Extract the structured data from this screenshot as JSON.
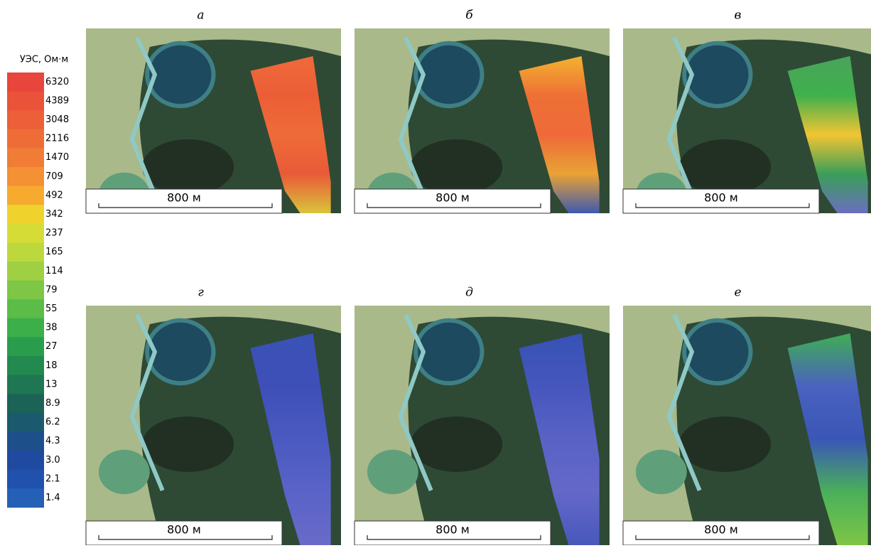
{
  "legend": {
    "title": "УЭС, Ом·м",
    "labels": [
      "6320",
      "4389",
      "3048",
      "2116",
      "1470",
      "709",
      "492",
      "342",
      "237",
      "165",
      "114",
      "79",
      "55",
      "38",
      "27",
      "18",
      "13",
      "8.9",
      "6.2",
      "4.3",
      "3.0",
      "2.1",
      "1.4"
    ],
    "colors": [
      "#e8453c",
      "#ea523a",
      "#ec5f38",
      "#ee6d37",
      "#f07c36",
      "#f39134",
      "#f6ab2f",
      "#f0d22c",
      "#d6dc36",
      "#bcd83c",
      "#9fd043",
      "#7dc646",
      "#5bbc48",
      "#3cae4a",
      "#2a9d4d",
      "#22894f",
      "#1e7652",
      "#1b6356",
      "#1b5a6e",
      "#1d4f8a",
      "#1f4aa0",
      "#2052ad",
      "#2460b5"
    ]
  },
  "panels": [
    {
      "label": "а",
      "scale": "800 м",
      "strip_colors": [
        "#ee6a3a",
        "#ec5e36",
        "#ee6b38",
        "#e95a38",
        "#d9c43a"
      ]
    },
    {
      "label": "б",
      "scale": "800 м",
      "strip_colors": [
        "#f3b230",
        "#ee7035",
        "#ee6a38",
        "#e9a235",
        "#3e5ab0"
      ]
    },
    {
      "label": "в",
      "scale": "800 м",
      "strip_colors": [
        "#4aa45a",
        "#3fb04c",
        "#f2c533",
        "#3a9e58",
        "#6a6ec0"
      ]
    },
    {
      "label": "г",
      "scale": "800 м",
      "strip_colors": [
        "#3a52b6",
        "#3e4fb8",
        "#4a5ac0",
        "#5a63c8",
        "#6a6ac8"
      ]
    },
    {
      "label": "д",
      "scale": "800 м",
      "strip_colors": [
        "#3652b4",
        "#4656bc",
        "#5a62c6",
        "#6468c8",
        "#4858bc"
      ]
    },
    {
      "label": "е",
      "scale": "800 м",
      "strip_colors": [
        "#3fae52",
        "#4a62c0",
        "#3a56b6",
        "#4ab05a",
        "#7dc646"
      ]
    }
  ]
}
